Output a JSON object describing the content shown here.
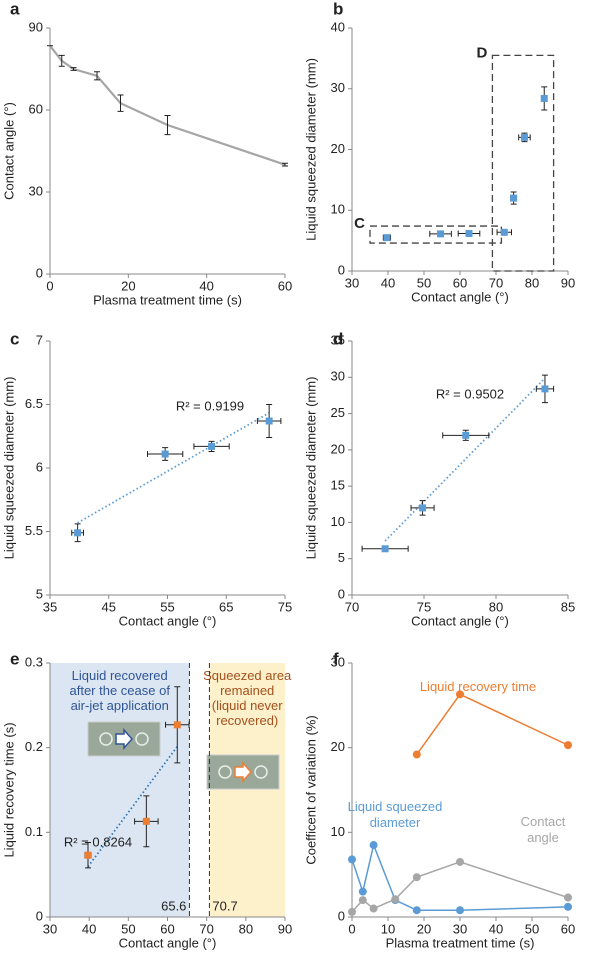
{
  "chart_data": [
    {
      "panel": "a",
      "type": "line",
      "x_label": "Plasma treatment time (s)",
      "y_label": "Contact angle (°)",
      "xlim": [
        0,
        60
      ],
      "xticks": [
        0,
        20,
        40,
        60
      ],
      "ylim": [
        0,
        90
      ],
      "yticks": [
        0,
        30,
        60,
        90
      ],
      "series": [
        {
          "color": "#a6a6a6",
          "marker": "none",
          "x": [
            0,
            3,
            6,
            12,
            18,
            30,
            60
          ],
          "values": [
            83.5,
            78,
            75,
            72.5,
            62.5,
            54.5,
            40
          ],
          "yerr": [
            0,
            2,
            0.5,
            1.5,
            3,
            3.5,
            0.5
          ]
        }
      ]
    },
    {
      "panel": "b",
      "type": "scatter",
      "x_label": "Contact angle (°)",
      "y_label": "Liquid squeezed diameter (mm)",
      "xlim": [
        30,
        90
      ],
      "xticks": [
        30,
        40,
        50,
        60,
        70,
        80,
        90
      ],
      "ylim": [
        0,
        40
      ],
      "yticks": [
        0,
        10,
        20,
        30,
        40
      ],
      "series": [
        {
          "color": "#5b9bd5",
          "marker": "square",
          "x": [
            39.7,
            54.6,
            62.5,
            72.3,
            74.9,
            77.9,
            83.4
          ],
          "values": [
            5.49,
            6.11,
            6.17,
            6.37,
            12,
            22,
            28.4
          ],
          "xerr": [
            1,
            3,
            3,
            2,
            0.8,
            1.6,
            0.6
          ],
          "yerr": [
            0.07,
            0.05,
            0.04,
            0.13,
            1,
            0.7,
            1.9
          ]
        }
      ],
      "boxes": [
        {
          "label": "C",
          "x": [
            35,
            71.5
          ],
          "y": [
            4.6,
            7.4
          ]
        },
        {
          "label": "D",
          "x": [
            69,
            86
          ],
          "y": [
            0,
            35.5
          ]
        }
      ]
    },
    {
      "panel": "c",
      "type": "scatter",
      "x_label": "Contact angle (°)",
      "y_label": "Liquid squeezed diameter (mm)",
      "xlim": [
        35,
        75
      ],
      "xticks": [
        35,
        45,
        55,
        65,
        75
      ],
      "ylim": [
        5,
        7
      ],
      "yticks": [
        5,
        5.5,
        6,
        6.5,
        7
      ],
      "series": [
        {
          "color": "#5b9bd5",
          "marker": "square",
          "x": [
            39.7,
            54.6,
            62.5,
            72.3
          ],
          "values": [
            5.49,
            6.11,
            6.17,
            6.37
          ],
          "xerr": [
            1,
            3,
            3,
            2
          ],
          "yerr": [
            0.07,
            0.05,
            0.04,
            0.13
          ]
        }
      ],
      "trendline": true,
      "r2_label": "R² = 0.9199"
    },
    {
      "panel": "d",
      "type": "scatter",
      "x_label": "Contact angle (°)",
      "y_label": "Liquid squeezed diameter (mm)",
      "xlim": [
        70,
        85
      ],
      "xticks": [
        70,
        75,
        80,
        85
      ],
      "ylim": [
        0,
        35
      ],
      "yticks": [
        0,
        5,
        10,
        15,
        20,
        25,
        30,
        35
      ],
      "series": [
        {
          "color": "#5b9bd5",
          "marker": "square",
          "x": [
            72.3,
            74.9,
            77.9,
            83.4
          ],
          "values": [
            6.37,
            12,
            22,
            28.4
          ],
          "xerr": [
            1.6,
            0.8,
            1.6,
            0.6
          ],
          "yerr": [
            0.2,
            1,
            0.7,
            1.9
          ]
        }
      ],
      "trendline": true,
      "r2_label": "R² = 0.9502"
    },
    {
      "panel": "e",
      "type": "scatter",
      "x_label": "Contact angle (°)",
      "y_label": "Liquid recovery time (s)",
      "xlim": [
        30,
        90
      ],
      "xticks": [
        30,
        40,
        50,
        60,
        70,
        80,
        90
      ],
      "ylim": [
        0,
        0.3
      ],
      "yticks": [
        0,
        0.1,
        0.2,
        0.3
      ],
      "series": [
        {
          "color": "#ed7d31",
          "marker": "square",
          "x": [
            39.7,
            54.6,
            62.5
          ],
          "values": [
            0.073,
            0.113,
            0.227
          ],
          "xerr": [
            0.8,
            3,
            3
          ],
          "yerr": [
            0.015,
            0.03,
            0.045
          ]
        }
      ],
      "trendline": true,
      "r2_label": "R² = 0.8264",
      "thresholds": [
        65.6,
        70.7
      ],
      "regions": [
        {
          "label": "Liquid recovered after the cease of air-jet application",
          "color": "#dce6f2",
          "text_color": "#2f5597"
        },
        {
          "label": "Squeezed area remained (liquid never recovered)",
          "color": "#fdf1cc",
          "text_color": "#a4501c"
        }
      ]
    },
    {
      "panel": "f",
      "type": "line",
      "x_label": "Plasma treatment time (s)",
      "y_label": "Coefficent of variation (%)",
      "xlim": [
        0,
        60
      ],
      "xticks": [
        0,
        10,
        20,
        30,
        40,
        50,
        60
      ],
      "ylim": [
        0,
        30
      ],
      "yticks": [
        0,
        10,
        20,
        30
      ],
      "series": [
        {
          "name": "Liquid recovery time",
          "color": "#ed7d31",
          "marker": "circle",
          "x": [
            18,
            30,
            60
          ],
          "values": [
            19.2,
            26.3,
            20.3
          ]
        },
        {
          "name": "Liquid squeezed diameter",
          "color": "#5b9bd5",
          "marker": "circle",
          "x": [
            0,
            3,
            6,
            12,
            18,
            30,
            60
          ],
          "values": [
            6.8,
            3,
            8.5,
            2,
            0.8,
            0.8,
            1.2
          ]
        },
        {
          "name": "Contact angle",
          "color": "#a6a6a6",
          "marker": "circle",
          "x": [
            0,
            3,
            6,
            12,
            18,
            30,
            60
          ],
          "values": [
            0.6,
            2,
            1,
            2.1,
            4.7,
            6.5,
            2.3
          ]
        }
      ]
    }
  ]
}
